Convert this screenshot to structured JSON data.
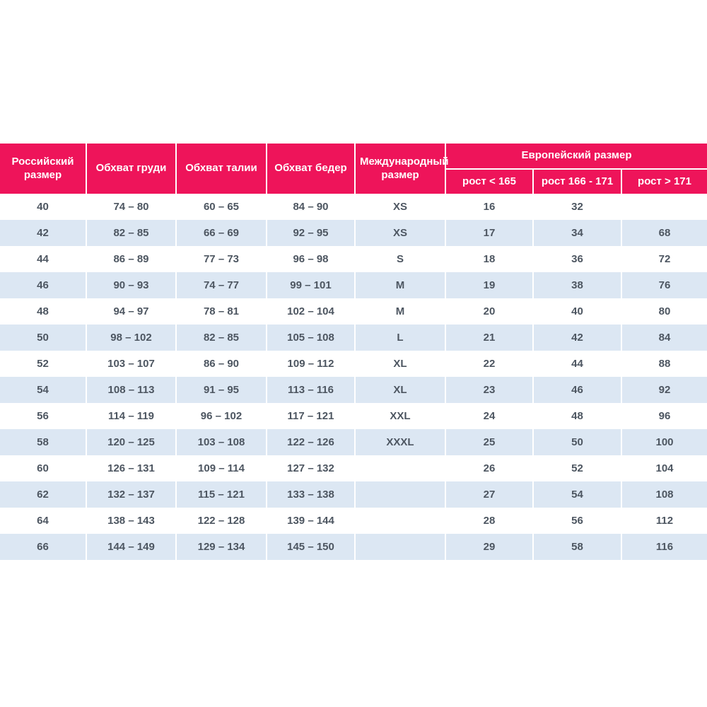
{
  "chart_data": {
    "type": "table",
    "headers": {
      "russian_size": "Российский размер",
      "chest": "Обхват груди",
      "waist": "Обхват талии",
      "hips": "Обхват бедер",
      "international_size": "Международный размер",
      "european_size": "Европейский размер",
      "height_lt_165": "рост < 165",
      "height_166_171": "рост 166 - 171",
      "height_gt_171": "рост > 171"
    },
    "rows": [
      [
        "40",
        "74 – 80",
        "60 – 65",
        "84 – 90",
        "XS",
        "16",
        "32",
        ""
      ],
      [
        "42",
        "82 – 85",
        "66 – 69",
        "92 – 95",
        "XS",
        "17",
        "34",
        "68"
      ],
      [
        "44",
        "86 – 89",
        "77 – 73",
        "96 – 98",
        "S",
        "18",
        "36",
        "72"
      ],
      [
        "46",
        "90 – 93",
        "74 – 77",
        "99 – 101",
        "M",
        "19",
        "38",
        "76"
      ],
      [
        "48",
        "94 – 97",
        "78 – 81",
        "102 – 104",
        "M",
        "20",
        "40",
        "80"
      ],
      [
        "50",
        "98 – 102",
        "82 – 85",
        "105 – 108",
        "L",
        "21",
        "42",
        "84"
      ],
      [
        "52",
        "103 – 107",
        "86 – 90",
        "109 – 112",
        "XL",
        "22",
        "44",
        "88"
      ],
      [
        "54",
        "108 – 113",
        "91 – 95",
        "113 – 116",
        "XL",
        "23",
        "46",
        "92"
      ],
      [
        "56",
        "114 – 119",
        "96 – 102",
        "117 – 121",
        "XXL",
        "24",
        "48",
        "96"
      ],
      [
        "58",
        "120 – 125",
        "103 – 108",
        "122 – 126",
        "XXXL",
        "25",
        "50",
        "100"
      ],
      [
        "60",
        "126 – 131",
        "109 – 114",
        "127 – 132",
        "",
        "26",
        "52",
        "104"
      ],
      [
        "62",
        "132 – 137",
        "115 – 121",
        "133 – 138",
        "",
        "27",
        "54",
        "108"
      ],
      [
        "64",
        "138 – 143",
        "122 – 128",
        "139 – 144",
        "",
        "28",
        "56",
        "112"
      ],
      [
        "66",
        "144 – 149",
        "129 – 134",
        "145 – 150",
        "",
        "29",
        "58",
        "116"
      ]
    ],
    "colors": {
      "header_bg": "#ee145a",
      "header_text": "#ffffff",
      "alt_row_bg": "#dce7f3",
      "cell_text": "#4d5661"
    }
  }
}
